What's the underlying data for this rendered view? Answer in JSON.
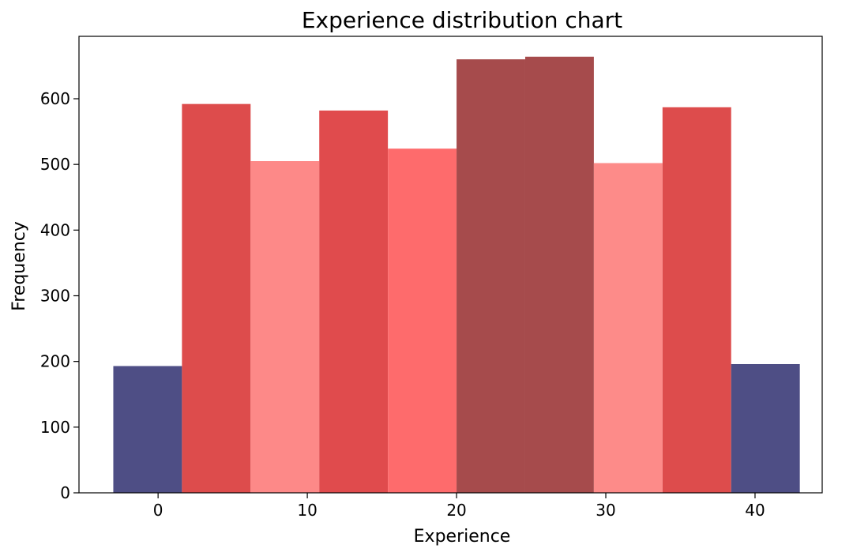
{
  "chart_data": {
    "type": "bar",
    "title": "Experience distribution chart",
    "xlabel": "Experience",
    "ylabel": "Frequency",
    "xlim": [
      -5.3,
      44.5
    ],
    "ylim": [
      0,
      695
    ],
    "xticks": [
      0,
      10,
      20,
      30,
      40
    ],
    "yticks": [
      0,
      100,
      200,
      300,
      400,
      500,
      600
    ],
    "grid": false,
    "bin_width": 4.6,
    "bins": [
      {
        "x_start": -3.0,
        "x_end": 1.6,
        "value": 193,
        "color": "#4e4e85"
      },
      {
        "x_start": 1.6,
        "x_end": 6.2,
        "value": 592,
        "color": "#dd4c4c"
      },
      {
        "x_start": 6.2,
        "x_end": 10.8,
        "value": 505,
        "color": "#fd8988"
      },
      {
        "x_start": 10.8,
        "x_end": 15.4,
        "value": 582,
        "color": "#e04b4d"
      },
      {
        "x_start": 15.4,
        "x_end": 20.0,
        "value": 524,
        "color": "#fe6b6c"
      },
      {
        "x_start": 20.0,
        "x_end": 24.6,
        "value": 660,
        "color": "#a64b4c"
      },
      {
        "x_start": 24.6,
        "x_end": 29.2,
        "value": 664,
        "color": "#a64b4c"
      },
      {
        "x_start": 29.2,
        "x_end": 33.8,
        "value": 502,
        "color": "#fd8b89"
      },
      {
        "x_start": 33.8,
        "x_end": 38.4,
        "value": 587,
        "color": "#dd4c4c"
      },
      {
        "x_start": 38.4,
        "x_end": 43.0,
        "value": 196,
        "color": "#4e4e85"
      }
    ]
  }
}
